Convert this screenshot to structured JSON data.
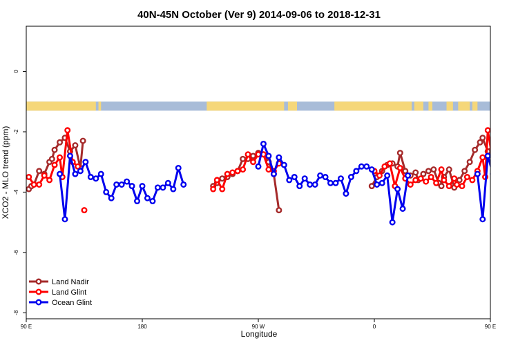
{
  "chart_data": {
    "type": "line",
    "title": "40N-45N October (Ver 9)   2014-09-06 to 2018-12-31",
    "xlabel": "Longitude",
    "ylabel": "XCO2 - MLO trend (ppm)",
    "xlim": [
      90,
      450
    ],
    "ylim": [
      -8.2,
      1.5
    ],
    "x_ticks": [
      {
        "value": 90,
        "label": "90 E"
      },
      {
        "value": 180,
        "label": "180"
      },
      {
        "value": 270,
        "label": "90 W"
      },
      {
        "value": 360,
        "label": "0"
      },
      {
        "value": 450,
        "label": "90 E"
      },
      {
        "value": 540,
        "label": "180"
      }
    ],
    "y_ticks": [
      {
        "value": 0,
        "label": "0"
      },
      {
        "value": -2,
        "label": "-2"
      },
      {
        "value": -4,
        "label": "-4"
      },
      {
        "value": -6,
        "label": "-6"
      },
      {
        "value": -8,
        "label": "-8"
      }
    ],
    "land_ocean_strip": {
      "y_range": [
        -1.3,
        -1.0
      ],
      "land_color": "#f5d77a",
      "ocean_color": "#a8bcd8",
      "land_segments": [
        [
          90,
          144
        ],
        [
          146,
          148
        ],
        [
          230,
          290
        ],
        [
          293,
          300
        ],
        [
          329,
          389
        ],
        [
          391,
          398
        ],
        [
          402,
          405
        ],
        [
          416,
          421
        ],
        [
          425,
          434
        ],
        [
          436,
          440
        ]
      ]
    },
    "series": [
      {
        "name": "Land Nadir",
        "color": "#a52a2a",
        "segments": [
          [
            [
              92,
              -3.9
            ],
            [
              94,
              -3.8
            ],
            [
              96,
              -3.75
            ],
            [
              100,
              -3.3
            ],
            [
              104,
              -3.4
            ],
            [
              108,
              -3.0
            ],
            [
              110,
              -2.9
            ],
            [
              112,
              -2.6
            ],
            [
              116,
              -2.35
            ],
            [
              120,
              -2.2
            ],
            [
              124,
              -2.65
            ],
            [
              128,
              -2.45
            ],
            [
              132,
              -3.2
            ],
            [
              134,
              -2.3
            ]
          ],
          [
            [
              235,
              -3.8
            ],
            [
              238,
              -3.7
            ],
            [
              242,
              -3.55
            ],
            [
              246,
              -3.5
            ],
            [
              250,
              -3.4
            ],
            [
              254,
              -3.3
            ],
            [
              258,
              -2.9
            ],
            [
              262,
              -2.9
            ],
            [
              266,
              -2.8
            ],
            [
              270,
              -2.7
            ],
            [
              274,
              -2.75
            ],
            [
              278,
              -3.0
            ],
            [
              282,
              -3.4
            ],
            [
              286,
              -4.6
            ]
          ],
          [
            [
              358,
              -3.8
            ],
            [
              362,
              -3.5
            ],
            [
              366,
              -3.3
            ],
            [
              370,
              -3.1
            ],
            [
              374,
              -3.05
            ],
            [
              378,
              -3.15
            ],
            [
              380,
              -2.7
            ],
            [
              384,
              -3.3
            ],
            [
              388,
              -3.45
            ],
            [
              392,
              -3.35
            ],
            [
              394,
              -3.6
            ],
            [
              398,
              -3.4
            ],
            [
              402,
              -3.3
            ],
            [
              406,
              -3.25
            ],
            [
              410,
              -3.7
            ],
            [
              412,
              -3.8
            ],
            [
              414,
              -3.5
            ],
            [
              418,
              -3.25
            ],
            [
              422,
              -3.85
            ],
            [
              426,
              -3.6
            ],
            [
              430,
              -3.3
            ],
            [
              434,
              -3.0
            ],
            [
              438,
              -2.6
            ],
            [
              442,
              -2.35
            ],
            [
              444,
              -2.2
            ],
            [
              448,
              -2.65
            ],
            [
              452,
              -2.45
            ],
            [
              456,
              -3.2
            ],
            [
              458,
              -2.3
            ]
          ]
        ]
      },
      {
        "name": "Land Glint",
        "color": "#ff0000",
        "segments": [
          [
            [
              92,
              -3.5
            ],
            [
              96,
              -3.75
            ],
            [
              100,
              -3.75
            ],
            [
              104,
              -3.45
            ],
            [
              108,
              -3.6
            ],
            [
              112,
              -3.1
            ],
            [
              116,
              -2.85
            ],
            [
              118,
              -3.5
            ],
            [
              122,
              -1.95
            ],
            [
              126,
              -3.0
            ],
            [
              130,
              -3.15
            ]
          ],
          [
            [
              135,
              -4.6
            ]
          ],
          [
            [
              235,
              -3.9
            ],
            [
              238,
              -3.6
            ],
            [
              242,
              -3.9
            ],
            [
              246,
              -3.4
            ],
            [
              250,
              -3.35
            ],
            [
              254,
              -3.3
            ],
            [
              258,
              -3.25
            ],
            [
              262,
              -2.75
            ],
            [
              266,
              -3.0
            ],
            [
              270,
              -2.75
            ],
            [
              274,
              -2.75
            ],
            [
              278,
              -3.25
            ],
            [
              282,
              -3.3
            ],
            [
              286,
              -3.05
            ]
          ],
          [
            [
              360,
              -3.3
            ],
            [
              364,
              -3.45
            ],
            [
              368,
              -3.15
            ],
            [
              372,
              -3.05
            ],
            [
              376,
              -3.8
            ],
            [
              380,
              -3.2
            ],
            [
              384,
              -3.55
            ],
            [
              388,
              -3.75
            ],
            [
              392,
              -3.6
            ],
            [
              396,
              -3.55
            ],
            [
              400,
              -3.65
            ],
            [
              404,
              -3.5
            ],
            [
              408,
              -3.7
            ],
            [
              412,
              -3.25
            ],
            [
              414,
              -3.6
            ],
            [
              418,
              -3.8
            ],
            [
              422,
              -3.55
            ],
            [
              424,
              -3.75
            ],
            [
              428,
              -3.8
            ],
            [
              432,
              -3.5
            ],
            [
              436,
              -3.6
            ],
            [
              440,
              -3.3
            ],
            [
              444,
              -2.85
            ],
            [
              446,
              -3.5
            ],
            [
              448,
              -1.95
            ],
            [
              452,
              -3.0
            ],
            [
              454,
              -3.15
            ]
          ],
          [
            [
              458,
              -4.6
            ]
          ]
        ]
      },
      {
        "name": "Ocean Glint",
        "color": "#0000ee",
        "segments": [
          [
            [
              116,
              -3.4
            ],
            [
              120,
              -4.9
            ],
            [
              124,
              -2.8
            ],
            [
              128,
              -3.4
            ],
            [
              132,
              -3.3
            ],
            [
              136,
              -3.0
            ],
            [
              140,
              -3.5
            ],
            [
              144,
              -3.55
            ],
            [
              148,
              -3.4
            ],
            [
              152,
              -4.0
            ],
            [
              156,
              -4.2
            ],
            [
              160,
              -3.75
            ],
            [
              164,
              -3.75
            ],
            [
              168,
              -3.65
            ],
            [
              172,
              -3.8
            ],
            [
              176,
              -4.3
            ],
            [
              180,
              -3.8
            ],
            [
              184,
              -4.2
            ],
            [
              188,
              -4.3
            ],
            [
              192,
              -3.85
            ],
            [
              196,
              -3.85
            ],
            [
              200,
              -3.7
            ],
            [
              204,
              -3.9
            ],
            [
              208,
              -3.2
            ],
            [
              212,
              -3.75
            ]
          ],
          [
            [
              270,
              -3.15
            ],
            [
              274,
              -2.4
            ],
            [
              278,
              -2.8
            ],
            [
              282,
              -3.4
            ],
            [
              286,
              -2.85
            ],
            [
              290,
              -3.1
            ],
            [
              294,
              -3.6
            ],
            [
              298,
              -3.5
            ],
            [
              302,
              -3.8
            ],
            [
              306,
              -3.55
            ],
            [
              310,
              -3.75
            ],
            [
              314,
              -3.75
            ],
            [
              318,
              -3.45
            ],
            [
              322,
              -3.5
            ],
            [
              326,
              -3.7
            ],
            [
              330,
              -3.7
            ],
            [
              334,
              -3.55
            ],
            [
              338,
              -4.05
            ],
            [
              342,
              -3.5
            ],
            [
              346,
              -3.3
            ],
            [
              350,
              -3.15
            ],
            [
              354,
              -3.15
            ],
            [
              358,
              -3.25
            ],
            [
              362,
              -3.75
            ],
            [
              366,
              -3.7
            ],
            [
              370,
              -3.45
            ],
            [
              374,
              -5.0
            ],
            [
              378,
              -3.9
            ],
            [
              382,
              -4.55
            ],
            [
              386,
              -3.45
            ]
          ],
          [
            [
              440,
              -3.4
            ],
            [
              444,
              -4.9
            ],
            [
              448,
              -2.8
            ],
            [
              452,
              -3.4
            ],
            [
              456,
              -3.3
            ],
            [
              460,
              -3.0
            ],
            [
              464,
              -3.5
            ],
            [
              468,
              -3.7
            ],
            [
              472,
              -3.4
            ],
            [
              476,
              -4.0
            ],
            [
              480,
              -4.2
            ],
            [
              484,
              -3.75
            ]
          ]
        ]
      }
    ],
    "legend": {
      "position": "bottom-left",
      "entries": [
        "Land Nadir",
        "Land Glint",
        "Ocean Glint"
      ]
    }
  }
}
